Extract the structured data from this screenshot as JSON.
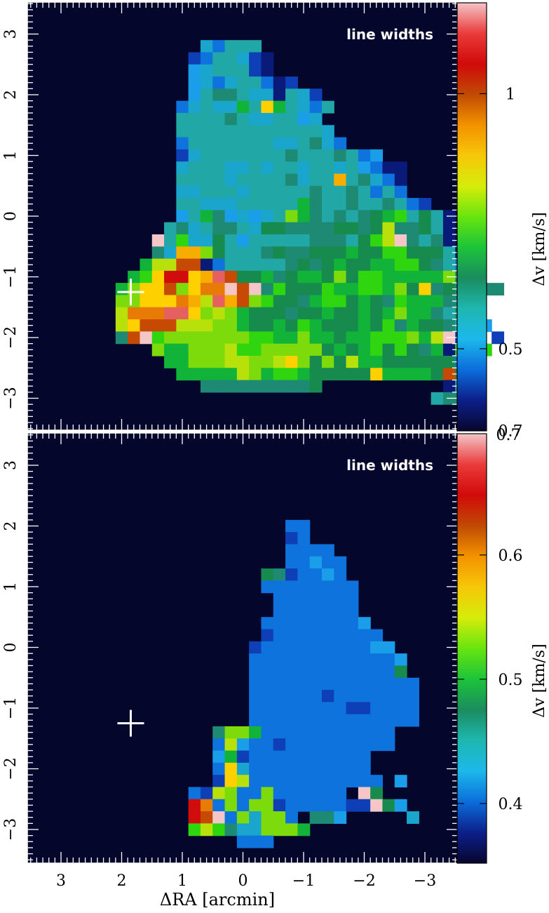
{
  "chart_data": [
    {
      "type": "heatmap",
      "annotation": "line widths",
      "xlabel": "ΔRA [arcmin]",
      "ylabel": "",
      "xlim": [
        3.6,
        -3.6
      ],
      "ylim": [
        -3.6,
        3.6
      ],
      "x_ticks": [
        3,
        2,
        1,
        0,
        -1,
        -2,
        -3
      ],
      "x_tick_labels": [],
      "y_ticks": [
        3,
        2,
        1,
        0,
        -1,
        -2,
        -3
      ],
      "y_tick_labels": [
        "3",
        "2",
        "1",
        "0",
        "−1",
        "−2",
        "−3"
      ],
      "background": "#05062b",
      "marker": {
        "symbol": "+",
        "x": 1.85,
        "y": -1.25,
        "color": "#ffffff"
      },
      "colorbar": {
        "label": "Δv [km/s]",
        "ticks": [
          0.5,
          1
        ],
        "tick_labels": [
          "0.5",
          "1"
        ],
        "bottom_label": "0.7",
        "colors": [
          "#07062e",
          "#0c1f8a",
          "#0b6ddb",
          "#1cb8ea",
          "#1eb7b0",
          "#1b8c5e",
          "#1cc43a",
          "#68e50f",
          "#d6ec0a",
          "#f6c708",
          "#f39200",
          "#c04a04",
          "#d10a0a",
          "#ea3b3b",
          "#f4c5c8"
        ]
      },
      "map": {
        "cell": 0.2,
        "x0": 2.0,
        "y0": 2.8,
        "palette": [
          "#04082e",
          "#0a1a78",
          "#0e3fb6",
          "#0e73dd",
          "#1b9ee9",
          "#1aa5cc",
          "#22a7a7",
          "#1e8a74",
          "#178a4e",
          "#11b338",
          "#2fd60f",
          "#7ddb0b",
          "#b8e00a",
          "#ffd000",
          "#f7ac00",
          "#e87a06",
          "#c64a04",
          "#d00c0c",
          "#e66060",
          "#f4c6c8"
        ],
        "rows": [
          ".......53666....................",
          "......2366521...................",
          "......4566621...................",
          "......453566312.................",
          "......46776551652...............",
          ".....3565596d96536..............",
          ".....666676556645...............",
          ".....6666666666665..............",
          ".....36666666556753.............",
          ".....25666666676667634..........",
          ".....5666556566566564311........",
          ".....6666566667566e67531........",
          ".....5566656666676676363........",
          ".....665556666697667667632......",
          ".....469745456b97676789a6861....",
          "....675677658877778878c77861....",
          "...j6a558646666677768acj7671....",
          "...75eeb86667877888988aa88861...",
          "..9ccgg1366666787898899aa87631..",
          ".9adhhdeig88978998b8aa99999b71..",
          "9bddgbdffjgj7a888a99aa9b8d787777",
          "bbdddfeciegba8879aa8987a999776..",
          "cfffiidbcb9888788988989b997677..",
          "cdgggcccbb98898a988898a79887664.",
          "7gjabbbbbbbaa99b99899aaab9cj2..2",
          "...b99bbbcaabbbbb8989a8a8791aaa.",
          "....99bbbccbbcdb8b8c9988888831..",
          ".....99999cb9aa988888d99998g8...",
          ".......7777777778..........166..",
          "..........................6777.."
        ]
      }
    },
    {
      "type": "heatmap",
      "annotation": "line widths",
      "xlabel": "ΔRA [arcmin]",
      "ylabel": "",
      "xlim": [
        3.6,
        -3.6
      ],
      "ylim": [
        -3.6,
        3.6
      ],
      "x_ticks": [
        3,
        2,
        1,
        0,
        -1,
        -2,
        -3
      ],
      "x_tick_labels": [
        "3",
        "2",
        "1",
        "0",
        "−1",
        "−2",
        "−3"
      ],
      "y_ticks": [
        3,
        2,
        1,
        0,
        -1,
        -2,
        -3
      ],
      "y_tick_labels": [
        "3",
        "2",
        "1",
        "0",
        "−1",
        "−2",
        "−3"
      ],
      "background": "#05062b",
      "marker": {
        "symbol": "+",
        "x": 1.85,
        "y": -1.25,
        "color": "#ffffff"
      },
      "colorbar": {
        "label": "Δv [km/s]",
        "ticks": [
          0.4,
          0.5,
          0.6,
          0.7
        ],
        "tick_labels": [
          "0.4",
          "0.5",
          "0.6",
          "0.7"
        ],
        "colors": [
          "#07062e",
          "#0c1f8a",
          "#0b6ddb",
          "#1cb8ea",
          "#1eb7b0",
          "#1b8c5e",
          "#1cc43a",
          "#68e50f",
          "#d6ec0a",
          "#f6c708",
          "#f39200",
          "#c04a04",
          "#d10a0a",
          "#ea3b3b",
          "#f4c5c8"
        ]
      },
      "map": {
        "cell": 0.2,
        "x0": 0.8,
        "y0": 2.0,
        "palette": [
          "#04082e",
          "#0a1a78",
          "#0e3fb6",
          "#0e73dd",
          "#1b9ee9",
          "#1aa5cc",
          "#22a7a7",
          "#1e8a74",
          "#178a4e",
          "#11b338",
          "#2fd60f",
          "#7ddb0b",
          "#b8e00a",
          "#ffd000",
          "#f7ac00",
          "#e87a06",
          "#c64a04",
          "#d00c0c",
          "#e66060",
          "#f4c6c8"
        ],
        "rows": [
          "........33.........",
          "........23.........",
          "........3333.......",
          "........33433......",
          "......8723343......",
          "......33333333.....",
          ".......3333333.....",
          ".......3333333.....",
          "......333333334....",
          "......2333333333...",
          ".....233333333344..",
          ".....3333333333334.",
          ".....3333333333338.",
          ".....33333333333333",
          ".....33333323333333",
          ".....33333333223333",
          ".....33333333333333",
          "..7bb933333333333..",
          "..3c4332333333333..",
          "..4923333333333....",
          "..3d53333333333....",
          "..2dc33333333333.4.",
          "32cb33b333333.j8...",
          "hf3b3bb23333322j84.",
          "hgj3b5bb3.774.....5",
          "aca755bbb9.........",
          "....333............"
        ]
      }
    }
  ]
}
